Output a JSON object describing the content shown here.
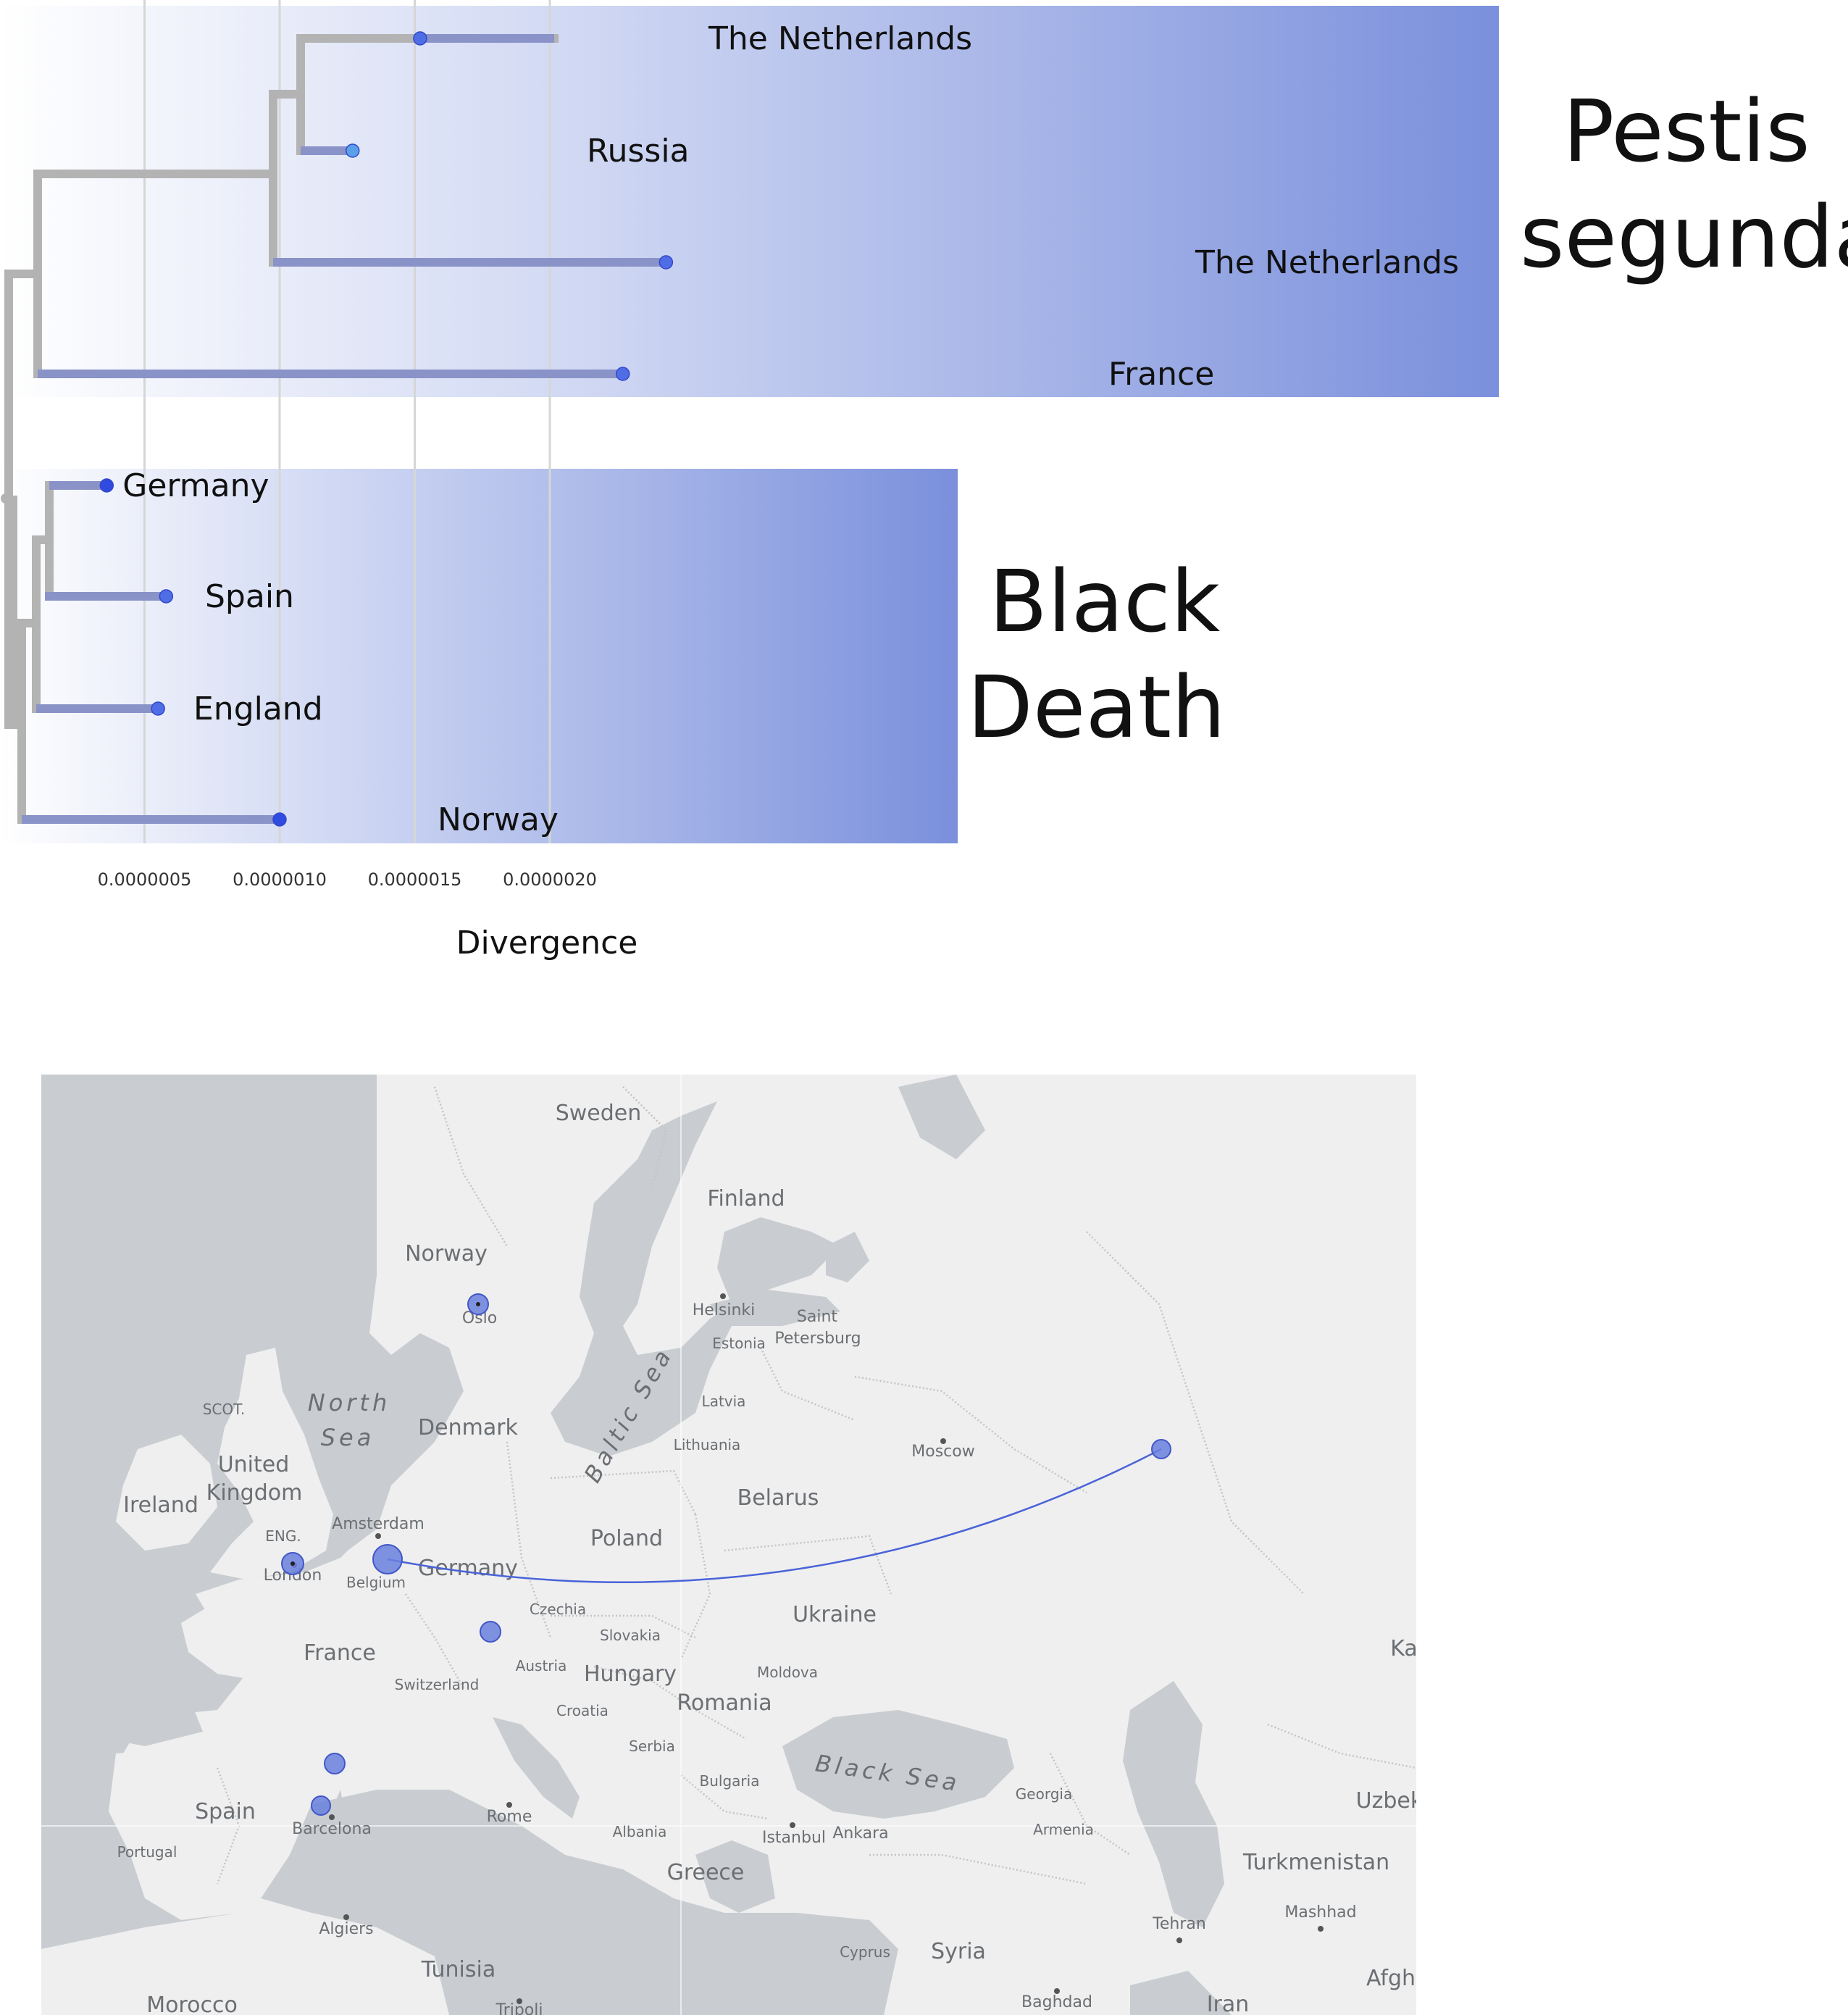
{
  "groups": {
    "pestis_segunda": {
      "line1": "Pestis",
      "line2": "segunda"
    },
    "black_death": {
      "line1": "Black",
      "line2": "Death"
    }
  },
  "tree": {
    "axis_title": "Divergence",
    "ticks": [
      "0.0000005",
      "0.0000010",
      "0.0000015",
      "0.0000020"
    ],
    "tick_values": [
      5e-07,
      1e-06,
      1.5e-06,
      2e-06
    ],
    "tips": [
      {
        "label": "The Netherlands",
        "group": "pestis_segunda",
        "divergence": 1.52e-06,
        "color": "#4f6ee6"
      },
      {
        "label": "Russia",
        "group": "pestis_segunda",
        "divergence": 1.27e-06,
        "color": "#5aa0e8"
      },
      {
        "label": "The Netherlands",
        "group": "pestis_segunda",
        "divergence": 2.43e-06,
        "color": "#4f6ee6"
      },
      {
        "label": "France",
        "group": "pestis_segunda",
        "divergence": 2.27e-06,
        "color": "#4f6ee6"
      },
      {
        "label": "Germany",
        "group": "black_death",
        "divergence": 3.6e-07,
        "color": "#2f4be0"
      },
      {
        "label": "Spain",
        "group": "black_death",
        "divergence": 5.8e-07,
        "color": "#4f6ee6"
      },
      {
        "label": "England",
        "group": "black_death",
        "divergence": 5.5e-07,
        "color": "#4f6ee6"
      },
      {
        "label": "Norway",
        "group": "black_death",
        "divergence": 1e-06,
        "color": "#2f4be0"
      }
    ],
    "colors": {
      "branch": "#b3b3b3",
      "tip_branch": "#8a93c8",
      "highlight_end": "#7b90dc",
      "highlight_start": "#ffffff"
    }
  },
  "map": {
    "colors": {
      "land": "#efefef",
      "water": "#c9cdd1",
      "border": "#ffffff",
      "marker": "#6a80de",
      "arc": "#4a63d8"
    },
    "countries": [
      "Sweden",
      "Finland",
      "Norway",
      "Denmark",
      "United",
      "Kingdom",
      "Ireland",
      "Poland",
      "Belarus",
      "Germany",
      "Ukraine",
      "France",
      "Hungary",
      "Romania",
      "Spain",
      "Greece",
      "Syria",
      "Tunisia",
      "Morocco",
      "Turkmenistan",
      "Uzbekista",
      "Iran",
      "Afgh",
      "Ka"
    ],
    "seas": [
      "North",
      "Sea",
      "Baltic Sea",
      "Black Sea"
    ],
    "regions": [
      "SCOT.",
      "ENG.",
      "Estonia",
      "Latvia",
      "Lithuania",
      "Czechia",
      "Slovakia",
      "Austria",
      "Switzerland",
      "Belgium",
      "Moldova",
      "Croatia",
      "Serbia",
      "Bulgaria",
      "Albania",
      "Portugal",
      "Georgia",
      "Armenia",
      "Cyprus"
    ],
    "cities": [
      "Oslo",
      "Helsinki",
      "Saint",
      "Petersburg",
      "Moscow",
      "Amsterdam",
      "London",
      "Barcelona",
      "Rome",
      "Istanbul",
      "Ankara",
      "Algiers",
      "Tehran",
      "Mashhad",
      "Baghdad",
      "Tripoli"
    ]
  }
}
